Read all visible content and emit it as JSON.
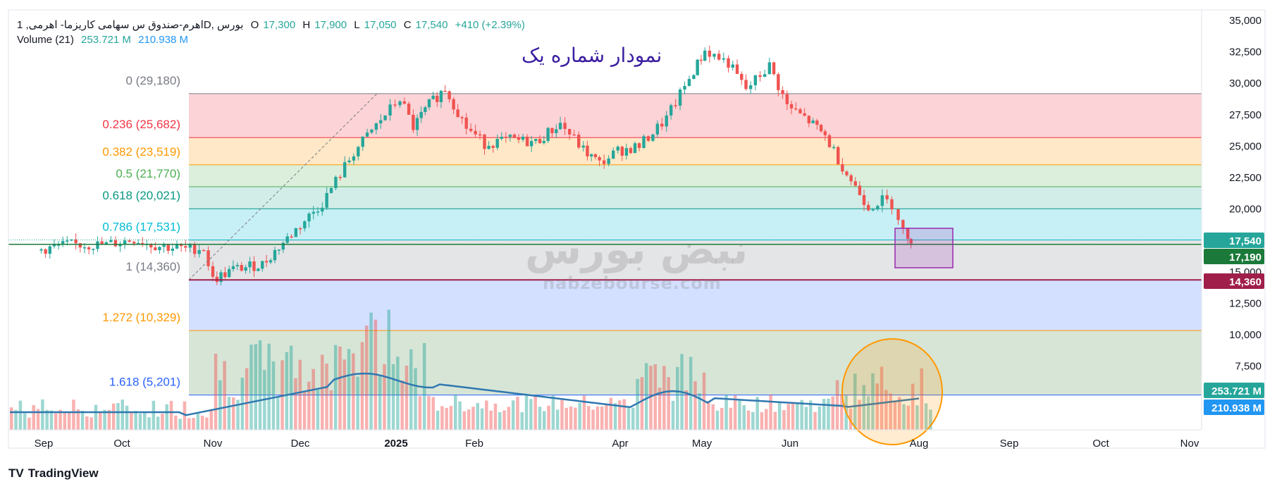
{
  "header": {
    "symbol": "اهرم-صندوق س سهامی کاریزما- اهرمی, 1D, بورس",
    "open_label": "O",
    "open": "17,300",
    "high_label": "H",
    "high": "17,900",
    "low_label": "L",
    "low": "17,050",
    "close_label": "C",
    "close": "17,540",
    "change": "+410 (+2.39%)"
  },
  "volume_legend": {
    "label": "Volume (21)",
    "v1": "253.721 M",
    "v2": "210.938 M"
  },
  "annotation_title": "نمودار شماره یک",
  "watermark": {
    "brand_fa": "نبض بورس",
    "brand_url": "nabzebourse.com"
  },
  "footer": {
    "brand": "TradingView",
    "logo": "TV"
  },
  "price_axis": {
    "ticks": [
      "35,000",
      "32,500",
      "30,000",
      "27,500",
      "25,000",
      "22,500",
      "20,000",
      "15,000",
      "12,500",
      "10,000",
      "7,500"
    ],
    "badges": [
      {
        "text": "17,540",
        "color": "#26a69a"
      },
      {
        "text": "17,190",
        "color": "#1b7a3a"
      },
      {
        "text": "14,360",
        "color": "#a01f4a"
      },
      {
        "text": "253.721 M",
        "color": "#26a69a"
      },
      {
        "text": "210.938 M",
        "color": "#2196f3"
      }
    ]
  },
  "time_axis": {
    "labels": [
      "Sep",
      "Oct",
      "Nov",
      "Dec",
      "2025",
      "Feb",
      "Apr",
      "May",
      "Jun",
      "Aug",
      "Sep",
      "Oct",
      "Nov"
    ]
  },
  "fib_levels": [
    {
      "label": "0 (29,180)",
      "price": 29180,
      "color": "#787b86"
    },
    {
      "label": "0.236 (25,682)",
      "price": 25682,
      "color": "#f23645"
    },
    {
      "label": "0.382 (23,519)",
      "price": 23519,
      "color": "#ff9800"
    },
    {
      "label": "0.5 (21,770)",
      "price": 21770,
      "color": "#4caf50"
    },
    {
      "label": "0.618 (20,021)",
      "price": 20021,
      "color": "#089981"
    },
    {
      "label": "0.786 (17,531)",
      "price": 17531,
      "color": "#00bcd4"
    },
    {
      "label": "1 (14,360)",
      "price": 14360,
      "color": "#787b86"
    },
    {
      "label": "1.272 (10,329)",
      "price": 10329,
      "color": "#ff9800"
    },
    {
      "label": "1.618 (5,201)",
      "price": 5201,
      "color": "#2962ff"
    }
  ],
  "chart_data": {
    "type": "candlestick",
    "price_range": [
      3200,
      36000
    ],
    "x_labels": [
      "Sep",
      "Oct",
      "Nov",
      "Dec",
      "2025",
      "Feb",
      "Apr",
      "May",
      "Jun",
      "Aug",
      "Sep",
      "Oct",
      "Nov"
    ],
    "close_path": [
      [
        "Aug 25",
        16700
      ],
      [
        "Sep 10",
        17150
      ],
      [
        "Sep 25",
        17150
      ],
      [
        "Oct 05",
        17600
      ],
      [
        "Oct 12",
        17100
      ],
      [
        "Oct 22",
        16800
      ],
      [
        "Oct 28",
        16900
      ],
      [
        "Nov 01",
        14360
      ],
      [
        "Nov 08",
        15200
      ],
      [
        "Nov 18",
        15600
      ],
      [
        "Nov 28",
        18000
      ],
      [
        "Dec 08",
        20500
      ],
      [
        "Dec 18",
        24500
      ],
      [
        "Dec 28",
        27500
      ],
      [
        "Jan 03",
        28800
      ],
      [
        "Jan 08",
        26500
      ],
      [
        "Jan 14",
        28300
      ],
      [
        "Jan 20",
        29600
      ],
      [
        "Jan 28",
        26500
      ],
      [
        "Feb 05",
        25200
      ],
      [
        "Feb 15",
        25500
      ],
      [
        "Feb 25",
        25300
      ],
      [
        "Mar 05",
        26800
      ],
      [
        "Mar 15",
        24700
      ],
      [
        "Mar 22",
        23600
      ],
      [
        "Mar 30",
        24600
      ],
      [
        "Apr 08",
        25000
      ],
      [
        "Apr 18",
        27200
      ],
      [
        "Apr 28",
        31000
      ],
      [
        "May 02",
        32600
      ],
      [
        "May 10",
        31600
      ],
      [
        "May 16",
        29500
      ],
      [
        "May 24",
        31400
      ],
      [
        "May 30",
        28200
      ],
      [
        "Jun 08",
        27000
      ],
      [
        "Jun 14",
        25800
      ],
      [
        "Jun 22",
        22800
      ],
      [
        "Jun 30",
        20200
      ],
      [
        "Jul 08",
        20700
      ],
      [
        "Jul 14",
        20400
      ],
      [
        "Jul 18",
        19400
      ],
      [
        "Jul 24",
        17300
      ],
      [
        "Jul 26",
        17540
      ]
    ],
    "moving_average_volume": "21",
    "last_close": 17540,
    "reference_line": 17190,
    "swing_low": 14360,
    "swing_high": 29180,
    "volume": {
      "last": "253.721 M",
      "ma": "210.938 M"
    }
  }
}
